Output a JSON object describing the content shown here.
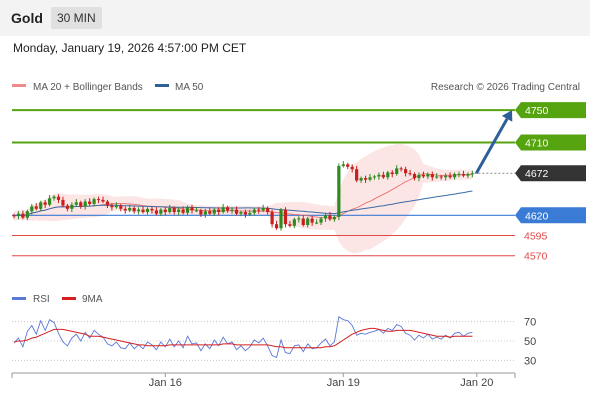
{
  "header": {
    "title": "Gold",
    "timeframe": "30 MIN",
    "datetime": "Monday, January 19, 2026 4:57:00 PM CET"
  },
  "colors": {
    "bullish": "#2e8b1f",
    "bearish": "#c81e1e",
    "resistance": "#55a30f",
    "support": "#e24a4a",
    "pivot": "#3a7bd5",
    "current": "#333333",
    "arrow": "#2e5f99",
    "ma20": "#e86464",
    "ma50": "#3a6aa8",
    "bands": "#fbdcdc",
    "rsi": "#5a78d6",
    "rsi_ma": "#d61f1f"
  },
  "chart_data": [
    {
      "type": "candlestick",
      "title": "Gold",
      "legend": [
        {
          "label": "MA 20 + Bollinger Bands",
          "color": "#f08a8a"
        },
        {
          "label": "MA 50",
          "color": "#2e5f99"
        }
      ],
      "legend_position": "top-left",
      "credit": "Research © 2026 Trading Central",
      "x_ticks": [
        "Jan 16",
        "Jan 19",
        "Jan 20"
      ],
      "ylim": [
        4540,
        4765
      ],
      "close_series_start": 4620,
      "close_series": [
        4619,
        4622,
        4617,
        4625,
        4631,
        4628,
        4636,
        4633,
        4641,
        4643,
        4639,
        4632,
        4628,
        4633,
        4636,
        4631,
        4637,
        4634,
        4640,
        4639,
        4637,
        4632,
        4630,
        4632,
        4628,
        4626,
        4629,
        4625,
        4627,
        4624,
        4628,
        4626,
        4622,
        4627,
        4624,
        4629,
        4624,
        4627,
        4623,
        4630,
        4626,
        4626,
        4621,
        4625,
        4622,
        4627,
        4624,
        4630,
        4626,
        4627,
        4622,
        4624,
        4621,
        4623,
        4627,
        4626,
        4629,
        4624,
        4609,
        4604,
        4627,
        4609,
        4607,
        4615,
        4616,
        4608,
        4616,
        4611,
        4611,
        4616,
        4620,
        4615,
        4618,
        4681,
        4683,
        4680,
        4677,
        4663,
        4666,
        4664,
        4667,
        4668,
        4670,
        4667,
        4673,
        4671,
        4678,
        4677,
        4672,
        4671,
        4666,
        4670,
        4668,
        4671,
        4667,
        4668,
        4667,
        4669,
        4667,
        4671,
        4671,
        4669,
        4671,
        4672
      ],
      "ma20": {
        "start": 4621,
        "mid": 4631,
        "end": 4670
      },
      "ma50": {
        "start": 4624,
        "mid": 4624,
        "end": 4655
      },
      "projection": {
        "from": 4672,
        "to": 4750
      },
      "levels": [
        {
          "label": "4750",
          "value": 4750,
          "kind": "resistance"
        },
        {
          "label": "4710",
          "value": 4710,
          "kind": "resistance"
        },
        {
          "label": "4672",
          "value": 4672,
          "kind": "current"
        },
        {
          "label": "4620",
          "value": 4620,
          "kind": "pivot"
        },
        {
          "label": "4595",
          "value": 4595,
          "kind": "support"
        },
        {
          "label": "4570",
          "value": 4570,
          "kind": "support"
        }
      ]
    },
    {
      "type": "line",
      "title": "RSI",
      "series": [
        {
          "name": "RSI",
          "color": "#5a78d6"
        },
        {
          "name": "9MA",
          "color": "#d61f1f"
        }
      ],
      "legend_position": "top-left",
      "ylim": [
        20,
        80
      ],
      "y_ticks": [
        "70",
        "50",
        "30"
      ],
      "rsi_values": [
        48,
        53,
        44,
        60,
        66,
        57,
        71,
        61,
        72,
        69,
        58,
        49,
        45,
        53,
        57,
        50,
        59,
        53,
        61,
        57,
        54,
        47,
        45,
        49,
        43,
        42,
        48,
        42,
        46,
        42,
        49,
        46,
        41,
        49,
        44,
        52,
        44,
        50,
        43,
        55,
        47,
        48,
        40,
        47,
        42,
        51,
        45,
        54,
        47,
        49,
        41,
        45,
        40,
        44,
        51,
        48,
        53,
        45,
        35,
        33,
        51,
        38,
        37,
        45,
        46,
        39,
        47,
        42,
        43,
        48,
        52,
        45,
        49,
        75,
        72,
        71,
        66,
        56,
        58,
        57,
        59,
        60,
        62,
        58,
        63,
        61,
        67,
        65,
        58,
        56,
        51,
        56,
        53,
        57,
        52,
        54,
        52,
        56,
        53,
        58,
        59,
        55,
        58,
        59
      ],
      "ma9_values": [
        49,
        50,
        50,
        51,
        53,
        54,
        56,
        58,
        60,
        62,
        62,
        62,
        61,
        60,
        59,
        58,
        57,
        55,
        55,
        55,
        54,
        53,
        52,
        51,
        50,
        49,
        48,
        47,
        46,
        46,
        45,
        45,
        45,
        45,
        45,
        46,
        46,
        46,
        46,
        46,
        46,
        46,
        46,
        46,
        46,
        46,
        46,
        47,
        47,
        47,
        46,
        46,
        46,
        46,
        46,
        46,
        46,
        46,
        45,
        44,
        44,
        43,
        43,
        43,
        43,
        43,
        43,
        43,
        43,
        43,
        44,
        44,
        45,
        48,
        51,
        54,
        57,
        59,
        61,
        62,
        63,
        63,
        62,
        61,
        60,
        60,
        61,
        61,
        61,
        61,
        60,
        59,
        58,
        57,
        56,
        55,
        55,
        55,
        54,
        55,
        55,
        55,
        55,
        55
      ]
    }
  ]
}
